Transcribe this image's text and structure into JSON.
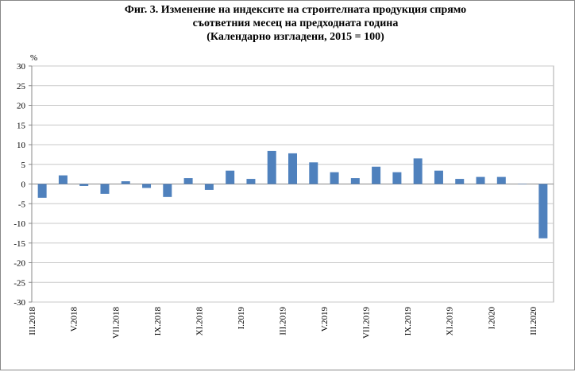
{
  "chart_data": {
    "type": "bar",
    "title": [
      "Фиг. 3. Изменение на индексите на строителната продукция спрямо",
      "съответния месец на предходната година",
      "(Календарно изгладени, 2015 = 100)"
    ],
    "y_label": "%",
    "categories": [
      "III.2018",
      null,
      "V.2018",
      null,
      "VII.2018",
      null,
      "IX.2018",
      null,
      "XI.2018",
      null,
      "I.2019",
      null,
      "III.2019",
      null,
      "V.2019",
      null,
      "VII.2019",
      null,
      "IX.2019",
      null,
      "XI.2019",
      null,
      "I.2020",
      null,
      "III.2020"
    ],
    "values": [
      -3.5,
      2.2,
      -0.5,
      -2.5,
      0.7,
      -1.0,
      -3.3,
      1.5,
      -1.5,
      3.4,
      1.3,
      8.4,
      7.8,
      5.5,
      3.0,
      1.5,
      4.4,
      3.0,
      6.5,
      3.4,
      1.3,
      1.8,
      1.8,
      0.1,
      -13.8
    ],
    "color": "#4f81bd",
    "ylim": [
      -30,
      30
    ],
    "yticks": [
      -30,
      -25,
      -20,
      -15,
      -10,
      -5,
      0,
      5,
      10,
      15,
      20,
      25,
      30
    ],
    "grid": true
  }
}
